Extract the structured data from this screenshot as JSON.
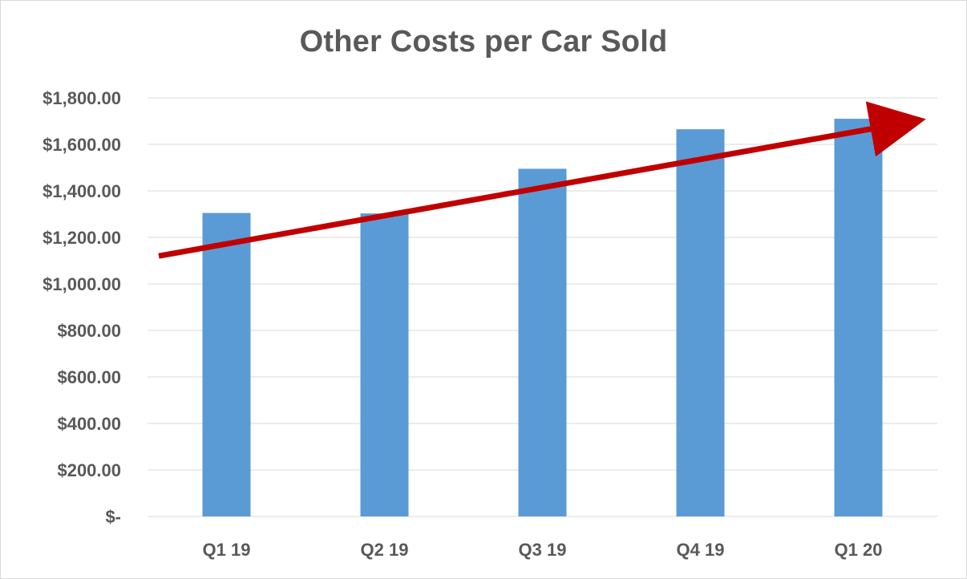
{
  "chart_data": {
    "type": "bar",
    "title": "Other Costs per Car Sold",
    "xlabel": "",
    "ylabel": "",
    "categories": [
      "Q1 19",
      "Q2 19",
      "Q3 19",
      "Q4 19",
      "Q1 20"
    ],
    "values": [
      1305,
      1303,
      1495,
      1665,
      1710
    ],
    "ylim": [
      0,
      1800
    ],
    "y_ticks": [
      0,
      200,
      400,
      600,
      800,
      1000,
      1200,
      1400,
      1600,
      1800
    ],
    "y_tick_labels": [
      "$-",
      "$200.00",
      "$400.00",
      "$600.00",
      "$800.00",
      "$1,000.00",
      "$1,200.00",
      "$1,400.00",
      "$1,600.00",
      "$1,800.00"
    ],
    "grid": true,
    "legend": "none",
    "colors": {
      "bar": "#5b9bd5",
      "grid": "#d9d9d9",
      "text": "#595959",
      "trend_arrow": "#c00000"
    },
    "annotations": [
      {
        "type": "trend-arrow",
        "from_value": 1120,
        "to_value": 1700,
        "direction": "upward"
      }
    ]
  }
}
